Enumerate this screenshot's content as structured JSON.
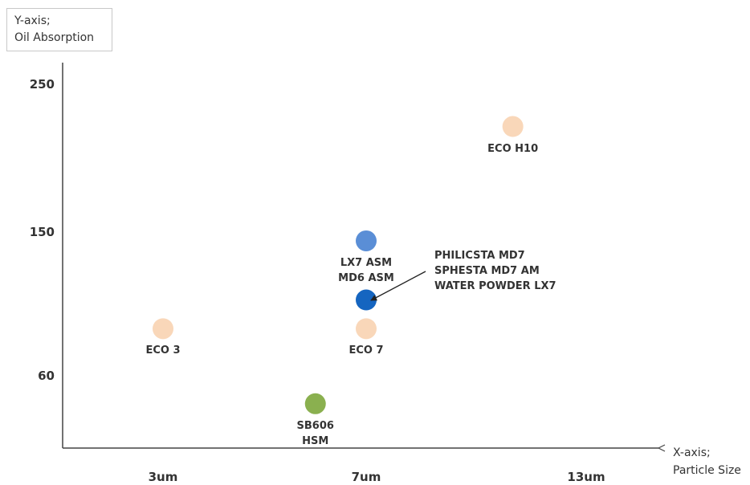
{
  "chart_data": {
    "type": "scatter",
    "ylabel": [
      "Y-axis;",
      "Oil Absorption"
    ],
    "xlabel": [
      "X-axis;",
      "Particle Size"
    ],
    "y_ticks": [
      {
        "label": "250",
        "value": 250
      },
      {
        "label": "150",
        "value": 150
      },
      {
        "label": "60",
        "value": 60
      }
    ],
    "x_ticks": [
      {
        "label": "3um",
        "value": 3
      },
      {
        "label": "7um",
        "value": 7
      },
      {
        "label": "13um",
        "value": 13
      }
    ],
    "points": [
      {
        "label": [
          "ECO 3"
        ],
        "x": 3,
        "y": 90,
        "color": "#f9d7b9"
      },
      {
        "label": [
          "ECO 7"
        ],
        "x": 7,
        "y": 90,
        "color": "#f9d7b9"
      },
      {
        "label": [
          "ECO H10"
        ],
        "x": 11,
        "y": 222,
        "color": "#f9d7b9"
      },
      {
        "label": [
          "LX7 ASM",
          "MD6 ASM"
        ],
        "x": 7,
        "y": 145,
        "color": "#5a8ed6"
      },
      {
        "label": [
          "SB606",
          "HSM"
        ],
        "x": 6,
        "y": 43,
        "color": "#8ab04f"
      },
      {
        "label": [],
        "x": 7,
        "y": 108,
        "color": "#1565c0"
      }
    ],
    "callout": {
      "lines": [
        "PHILICSTA MD7",
        "SPHESTA MD7 AM",
        "WATER POWDER LX7"
      ]
    }
  }
}
